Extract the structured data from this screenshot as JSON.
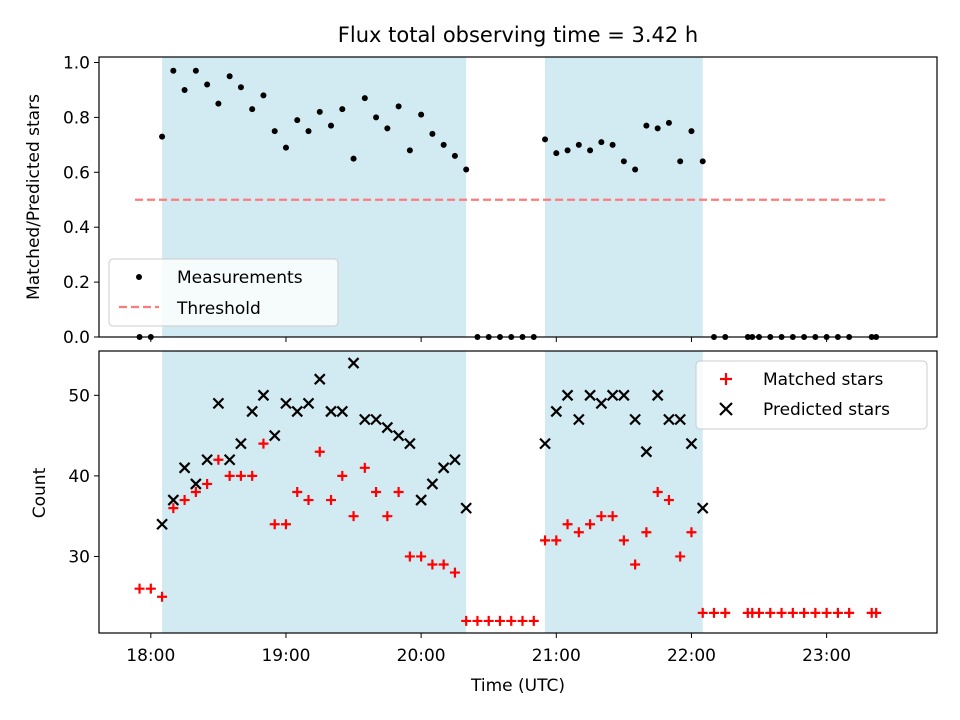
{
  "chart_data": [
    {
      "type": "scatter",
      "title": "Flux total observing time = 3.42 h",
      "xlabel": "",
      "ylabel": "Matched/Predicted stars",
      "xlim": [
        "17:37",
        "23:49"
      ],
      "ylim": [
        0,
        1.02
      ],
      "yticks": [
        0.0,
        0.2,
        0.4,
        0.6,
        0.8,
        1.0
      ],
      "ytick_labels": [
        "0.0",
        "0.2",
        "0.4",
        "0.6",
        "0.8",
        "1.0"
      ],
      "shaded_intervals": [
        [
          "18:05",
          "20:20"
        ],
        [
          "20:55",
          "22:05"
        ]
      ],
      "shade_color": "#add8e6",
      "legend_position": "lower-left",
      "series": [
        {
          "name": "Measurements",
          "marker": "dot",
          "color": "#000000",
          "points": [
            [
              "17:55",
              0.0
            ],
            [
              "18:00",
              0.0
            ],
            [
              "18:05",
              0.73
            ],
            [
              "18:10",
              0.97
            ],
            [
              "18:15",
              0.9
            ],
            [
              "18:20",
              0.97
            ],
            [
              "18:25",
              0.92
            ],
            [
              "18:30",
              0.85
            ],
            [
              "18:35",
              0.95
            ],
            [
              "18:40",
              0.91
            ],
            [
              "18:45",
              0.83
            ],
            [
              "18:50",
              0.88
            ],
            [
              "18:55",
              0.75
            ],
            [
              "19:00",
              0.69
            ],
            [
              "19:05",
              0.79
            ],
            [
              "19:10",
              0.75
            ],
            [
              "19:15",
              0.82
            ],
            [
              "19:20",
              0.77
            ],
            [
              "19:25",
              0.83
            ],
            [
              "19:30",
              0.65
            ],
            [
              "19:35",
              0.87
            ],
            [
              "19:40",
              0.8
            ],
            [
              "19:45",
              0.76
            ],
            [
              "19:50",
              0.84
            ],
            [
              "19:55",
              0.68
            ],
            [
              "20:00",
              0.81
            ],
            [
              "20:05",
              0.74
            ],
            [
              "20:10",
              0.7
            ],
            [
              "20:15",
              0.66
            ],
            [
              "20:20",
              0.61
            ],
            [
              "20:25",
              0.0
            ],
            [
              "20:30",
              0.0
            ],
            [
              "20:35",
              0.0
            ],
            [
              "20:40",
              0.0
            ],
            [
              "20:45",
              0.0
            ],
            [
              "20:50",
              0.0
            ],
            [
              "20:55",
              0.72
            ],
            [
              "21:00",
              0.67
            ],
            [
              "21:05",
              0.68
            ],
            [
              "21:10",
              0.7
            ],
            [
              "21:15",
              0.68
            ],
            [
              "21:20",
              0.71
            ],
            [
              "21:25",
              0.7
            ],
            [
              "21:30",
              0.64
            ],
            [
              "21:35",
              0.61
            ],
            [
              "21:40",
              0.77
            ],
            [
              "21:45",
              0.76
            ],
            [
              "21:50",
              0.78
            ],
            [
              "21:55",
              0.64
            ],
            [
              "22:00",
              0.75
            ],
            [
              "22:05",
              0.64
            ],
            [
              "22:10",
              0.0
            ],
            [
              "22:15",
              0.0
            ],
            [
              "22:25",
              0.0
            ],
            [
              "22:27",
              0.0
            ],
            [
              "22:30",
              0.0
            ],
            [
              "22:35",
              0.0
            ],
            [
              "22:40",
              0.0
            ],
            [
              "22:45",
              0.0
            ],
            [
              "22:50",
              0.0
            ],
            [
              "22:55",
              0.0
            ],
            [
              "23:00",
              0.0
            ],
            [
              "23:05",
              0.0
            ],
            [
              "23:10",
              0.0
            ],
            [
              "23:20",
              0.0
            ],
            [
              "23:22",
              0.0
            ]
          ]
        },
        {
          "name": "Threshold",
          "type": "line",
          "style": "dashed",
          "color": "#ff7a7a",
          "points": [
            [
              "17:53",
              0.5
            ],
            [
              "23:26",
              0.5
            ]
          ]
        }
      ]
    },
    {
      "type": "scatter",
      "title": "",
      "xlabel": "Time (UTC)",
      "ylabel": "Count",
      "xlim": [
        "17:37",
        "23:49"
      ],
      "ylim": [
        20.5,
        55.5
      ],
      "yticks": [
        30,
        40,
        50
      ],
      "ytick_labels": [
        "30",
        "40",
        "50"
      ],
      "xticks": [
        "18:00",
        "19:00",
        "20:00",
        "21:00",
        "22:00",
        "23:00"
      ],
      "xtick_labels": [
        "18:00",
        "19:00",
        "20:00",
        "21:00",
        "22:00",
        "23:00"
      ],
      "shaded_intervals": [
        [
          "18:05",
          "20:20"
        ],
        [
          "20:55",
          "22:05"
        ]
      ],
      "shade_color": "#add8e6",
      "legend_position": "top-right",
      "series": [
        {
          "name": "Matched stars",
          "marker": "plus",
          "color": "#ff0000",
          "points": [
            [
              "17:55",
              26
            ],
            [
              "18:00",
              26
            ],
            [
              "18:05",
              25
            ],
            [
              "18:10",
              36
            ],
            [
              "18:15",
              37
            ],
            [
              "18:20",
              38
            ],
            [
              "18:25",
              39
            ],
            [
              "18:30",
              42
            ],
            [
              "18:35",
              40
            ],
            [
              "18:40",
              40
            ],
            [
              "18:45",
              40
            ],
            [
              "18:50",
              44
            ],
            [
              "18:55",
              34
            ],
            [
              "19:00",
              34
            ],
            [
              "19:05",
              38
            ],
            [
              "19:10",
              37
            ],
            [
              "19:15",
              43
            ],
            [
              "19:20",
              37
            ],
            [
              "19:25",
              40
            ],
            [
              "19:30",
              35
            ],
            [
              "19:35",
              41
            ],
            [
              "19:40",
              38
            ],
            [
              "19:45",
              35
            ],
            [
              "19:50",
              38
            ],
            [
              "19:55",
              30
            ],
            [
              "20:00",
              30
            ],
            [
              "20:05",
              29
            ],
            [
              "20:10",
              29
            ],
            [
              "20:15",
              28
            ],
            [
              "20:20",
              22
            ],
            [
              "20:25",
              22
            ],
            [
              "20:30",
              22
            ],
            [
              "20:35",
              22
            ],
            [
              "20:40",
              22
            ],
            [
              "20:45",
              22
            ],
            [
              "20:50",
              22
            ],
            [
              "20:55",
              32
            ],
            [
              "21:00",
              32
            ],
            [
              "21:05",
              34
            ],
            [
              "21:10",
              33
            ],
            [
              "21:15",
              34
            ],
            [
              "21:20",
              35
            ],
            [
              "21:25",
              35
            ],
            [
              "21:30",
              32
            ],
            [
              "21:35",
              29
            ],
            [
              "21:40",
              33
            ],
            [
              "21:45",
              38
            ],
            [
              "21:50",
              37
            ],
            [
              "21:55",
              30
            ],
            [
              "22:00",
              33
            ],
            [
              "22:05",
              23
            ],
            [
              "22:10",
              23
            ],
            [
              "22:15",
              23
            ],
            [
              "22:25",
              23
            ],
            [
              "22:27",
              23
            ],
            [
              "22:30",
              23
            ],
            [
              "22:35",
              23
            ],
            [
              "22:40",
              23
            ],
            [
              "22:45",
              23
            ],
            [
              "22:50",
              23
            ],
            [
              "22:55",
              23
            ],
            [
              "23:00",
              23
            ],
            [
              "23:05",
              23
            ],
            [
              "23:10",
              23
            ],
            [
              "23:20",
              23
            ],
            [
              "23:22",
              23
            ]
          ]
        },
        {
          "name": "Predicted stars",
          "marker": "x",
          "color": "#000000",
          "points": [
            [
              "18:05",
              34
            ],
            [
              "18:10",
              37
            ],
            [
              "18:15",
              41
            ],
            [
              "18:20",
              39
            ],
            [
              "18:25",
              42
            ],
            [
              "18:30",
              49
            ],
            [
              "18:35",
              42
            ],
            [
              "18:40",
              44
            ],
            [
              "18:45",
              48
            ],
            [
              "18:50",
              50
            ],
            [
              "18:55",
              45
            ],
            [
              "19:00",
              49
            ],
            [
              "19:05",
              48
            ],
            [
              "19:10",
              49
            ],
            [
              "19:15",
              52
            ],
            [
              "19:20",
              48
            ],
            [
              "19:25",
              48
            ],
            [
              "19:30",
              54
            ],
            [
              "19:35",
              47
            ],
            [
              "19:40",
              47
            ],
            [
              "19:45",
              46
            ],
            [
              "19:50",
              45
            ],
            [
              "19:55",
              44
            ],
            [
              "20:00",
              37
            ],
            [
              "20:05",
              39
            ],
            [
              "20:10",
              41
            ],
            [
              "20:15",
              42
            ],
            [
              "20:20",
              36
            ],
            [
              "20:55",
              44
            ],
            [
              "21:00",
              48
            ],
            [
              "21:05",
              50
            ],
            [
              "21:10",
              47
            ],
            [
              "21:15",
              50
            ],
            [
              "21:20",
              49
            ],
            [
              "21:25",
              50
            ],
            [
              "21:30",
              50
            ],
            [
              "21:35",
              47
            ],
            [
              "21:40",
              43
            ],
            [
              "21:45",
              50
            ],
            [
              "21:50",
              47
            ],
            [
              "21:55",
              47
            ],
            [
              "22:00",
              44
            ],
            [
              "22:05",
              36
            ]
          ]
        }
      ]
    }
  ]
}
